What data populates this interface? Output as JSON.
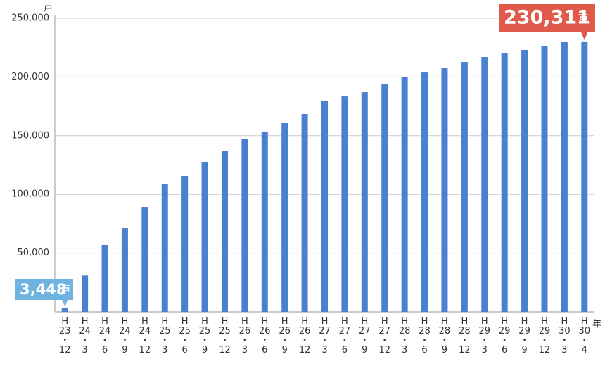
{
  "chart_data": {
    "type": "bar",
    "y_unit": "戸",
    "x_unit": "年",
    "categories": [
      [
        "H",
        "23",
        "・",
        "12"
      ],
      [
        "H",
        "24",
        "・",
        "3"
      ],
      [
        "H",
        "24",
        "・",
        "6"
      ],
      [
        "H",
        "24",
        "・",
        "9"
      ],
      [
        "H",
        "24",
        "・",
        "12"
      ],
      [
        "H",
        "25",
        "・",
        "3"
      ],
      [
        "H",
        "25",
        "・",
        "6"
      ],
      [
        "H",
        "25",
        "・",
        "9"
      ],
      [
        "H",
        "25",
        "・",
        "12"
      ],
      [
        "H",
        "26",
        "・",
        "3"
      ],
      [
        "H",
        "26",
        "・",
        "6"
      ],
      [
        "H",
        "26",
        "・",
        "9"
      ],
      [
        "H",
        "26",
        "・",
        "12"
      ],
      [
        "H",
        "27",
        "・",
        "3"
      ],
      [
        "H",
        "27",
        "・",
        "6"
      ],
      [
        "H",
        "27",
        "・",
        "9"
      ],
      [
        "H",
        "27",
        "・",
        "12"
      ],
      [
        "H",
        "28",
        "・",
        "3"
      ],
      [
        "H",
        "28",
        "・",
        "6"
      ],
      [
        "H",
        "28",
        "・",
        "9"
      ],
      [
        "H",
        "28",
        "・",
        "12"
      ],
      [
        "H",
        "29",
        "・",
        "3"
      ],
      [
        "H",
        "29",
        "・",
        "6"
      ],
      [
        "H",
        "29",
        "・",
        "9"
      ],
      [
        "H",
        "29",
        "・",
        "12"
      ],
      [
        "H",
        "30",
        "・",
        "3"
      ],
      [
        "H",
        "30",
        "・",
        "4"
      ]
    ],
    "values": [
      3448,
      31000,
      57000,
      71300,
      89300,
      109000,
      115700,
      127700,
      137300,
      146900,
      153500,
      160700,
      168500,
      179900,
      183400,
      187000,
      193600,
      200200,
      203800,
      208000,
      212800,
      217000,
      220000,
      223000,
      226000,
      230000,
      230311
    ],
    "value_labels": [
      "3,448",
      null,
      null,
      null,
      null,
      null,
      null,
      null,
      null,
      null,
      null,
      null,
      null,
      null,
      null,
      null,
      null,
      null,
      null,
      null,
      null,
      null,
      null,
      null,
      null,
      null,
      "230,311"
    ],
    "value_label_colors": [
      "#6fb3e0",
      "#e05a4c"
    ],
    "color": "#4a80d0",
    "ylim": [
      0,
      250000
    ],
    "yticks": [
      {
        "value": 50000,
        "label": "50,000"
      },
      {
        "value": 100000,
        "label": "100,000"
      },
      {
        "value": 150000,
        "label": "150,000"
      },
      {
        "value": 200000,
        "label": "200,000"
      },
      {
        "value": 250000,
        "label": "250,000"
      }
    ],
    "grid": true
  }
}
